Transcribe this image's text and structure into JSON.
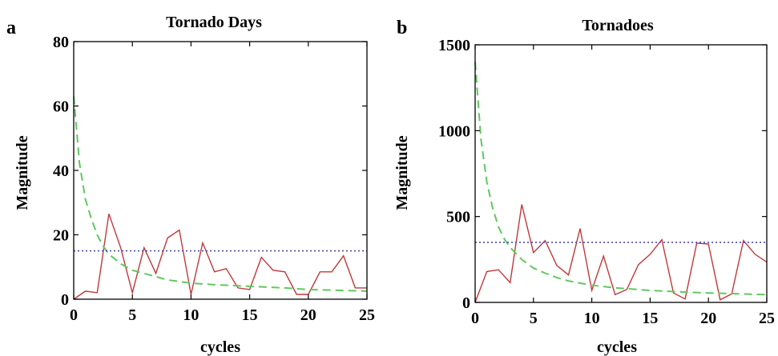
{
  "chart_data": [
    {
      "type": "line",
      "panel_label": "a",
      "title": "Tornado Days",
      "xlabel": "cycles",
      "ylabel": "Magnitude",
      "xlim": [
        0,
        25
      ],
      "ylim": [
        0,
        80
      ],
      "xticks": [
        0,
        5,
        10,
        15,
        20,
        25
      ],
      "yticks": [
        0,
        20,
        40,
        60,
        80
      ],
      "grid": false,
      "legend": "none",
      "series": [
        {
          "color": "#c0393b",
          "style": "solid",
          "x": [
            0,
            1,
            2,
            3,
            4,
            5,
            6,
            7,
            8,
            9,
            10,
            11,
            12,
            13,
            14,
            15,
            16,
            17,
            18,
            19,
            20,
            21,
            22,
            23,
            24,
            25
          ],
          "y": [
            0,
            2.5,
            2,
            26.5,
            16,
            2,
            16,
            8,
            19,
            21.5,
            1.5,
            17.5,
            8.5,
            9.5,
            3.5,
            3,
            13,
            9,
            8.5,
            1.5,
            1.5,
            8.5,
            8.5,
            13.5,
            3.5,
            3.5
          ]
        },
        {
          "color": "#5ec95e",
          "style": "dashed",
          "x": [
            0,
            0.5,
            1,
            1.5,
            2,
            2.5,
            3,
            4,
            5,
            6,
            7,
            8,
            10,
            12,
            15,
            18,
            20,
            25
          ],
          "y": [
            63,
            42,
            31,
            25,
            20,
            16.5,
            14,
            11,
            9,
            8,
            7,
            6,
            5,
            4.5,
            4,
            3.5,
            3,
            2.5
          ]
        },
        {
          "color": "#4b4bb0",
          "style": "dotted",
          "x": [
            0,
            25
          ],
          "y": [
            15,
            15
          ]
        }
      ]
    },
    {
      "type": "line",
      "panel_label": "b",
      "title": "Tornadoes",
      "xlabel": "cycles",
      "ylabel": "Magnitude",
      "xlim": [
        0,
        25
      ],
      "ylim": [
        0,
        1500
      ],
      "xticks": [
        0,
        5,
        10,
        15,
        20,
        25
      ],
      "yticks": [
        0,
        500,
        1000,
        1500
      ],
      "grid": false,
      "legend": "none",
      "series": [
        {
          "color": "#c0393b",
          "style": "solid",
          "x": [
            0,
            1,
            2,
            3,
            4,
            5,
            6,
            7,
            8,
            9,
            10,
            11,
            12,
            13,
            14,
            15,
            16,
            17,
            18,
            19,
            20,
            21,
            22,
            23,
            24,
            25
          ],
          "y": [
            0,
            180,
            190,
            115,
            570,
            290,
            360,
            215,
            160,
            430,
            70,
            270,
            45,
            75,
            220,
            280,
            365,
            55,
            20,
            345,
            340,
            15,
            50,
            360,
            280,
            235
          ]
        },
        {
          "color": "#5ec95e",
          "style": "dashed",
          "x": [
            0,
            0.5,
            1,
            1.5,
            2,
            2.5,
            3,
            4,
            5,
            6,
            7,
            8,
            10,
            12,
            15,
            18,
            20,
            25
          ],
          "y": [
            1400,
            950,
            700,
            550,
            440,
            370,
            320,
            250,
            200,
            170,
            145,
            125,
            100,
            85,
            70,
            60,
            55,
            45
          ]
        },
        {
          "color": "#4b4bb0",
          "style": "dotted",
          "x": [
            0,
            25
          ],
          "y": [
            350,
            350
          ]
        }
      ]
    }
  ]
}
